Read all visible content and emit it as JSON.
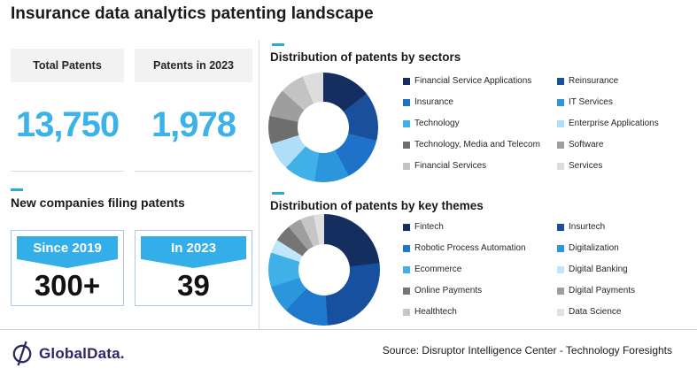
{
  "title": "Insurance data analytics patenting landscape",
  "accent_color": "#29abe2",
  "stats": [
    {
      "label": "Total Patents",
      "value": "13,750"
    },
    {
      "label": "Patents in 2023",
      "value": "1,978"
    }
  ],
  "new_companies": {
    "heading": "New companies filing patents",
    "cards": [
      {
        "banner": "Since 2019",
        "value": "300+"
      },
      {
        "banner": "In 2023",
        "value": "39"
      }
    ]
  },
  "chart_data": [
    {
      "type": "pie",
      "subtype": "donut",
      "title": "Distribution of patents by sectors",
      "legend_position": "right",
      "start_angle_deg": 0,
      "labels": [
        "Financial Service Applications",
        "Reinsurance",
        "Insurance",
        "IT Services",
        "Technology",
        "Enterprise Applications",
        "Technology, Media and Telecom",
        "Software",
        "Financial Services",
        "Services"
      ],
      "values": [
        14,
        14,
        13,
        10,
        9,
        8,
        8,
        8,
        7,
        6
      ],
      "values_unit": "percent_estimated",
      "colors": [
        "#142f5f",
        "#1a4f9c",
        "#1e73c8",
        "#2b96dc",
        "#3fb1e8",
        "#afdff8",
        "#6e6e6e",
        "#9e9e9e",
        "#c3c3c3",
        "#dddddd"
      ]
    },
    {
      "type": "pie",
      "subtype": "donut",
      "title": "Distribution of patents by key themes",
      "legend_position": "right",
      "start_angle_deg": 0,
      "labels": [
        "Fintech",
        "Insurtech",
        "Robotic Process Automation",
        "Digitalization",
        "Ecommerce",
        "Digital Banking",
        "Online Payments",
        "Digital Payments",
        "Healthtech",
        "Data Science"
      ],
      "values": [
        23,
        26,
        13,
        8,
        10,
        4,
        5,
        4,
        4,
        3
      ],
      "values_unit": "percent_estimated",
      "colors": [
        "#142f5f",
        "#17509f",
        "#1e78cc",
        "#2b96dc",
        "#3fb1e8",
        "#bfe6fa",
        "#757575",
        "#9e9e9e",
        "#c6c6c6",
        "#e0e0e0"
      ]
    }
  ],
  "footer": {
    "logo_text": "GlobalData.",
    "source": "Source: Disruptor Intelligence Center - Technology Foresights"
  }
}
